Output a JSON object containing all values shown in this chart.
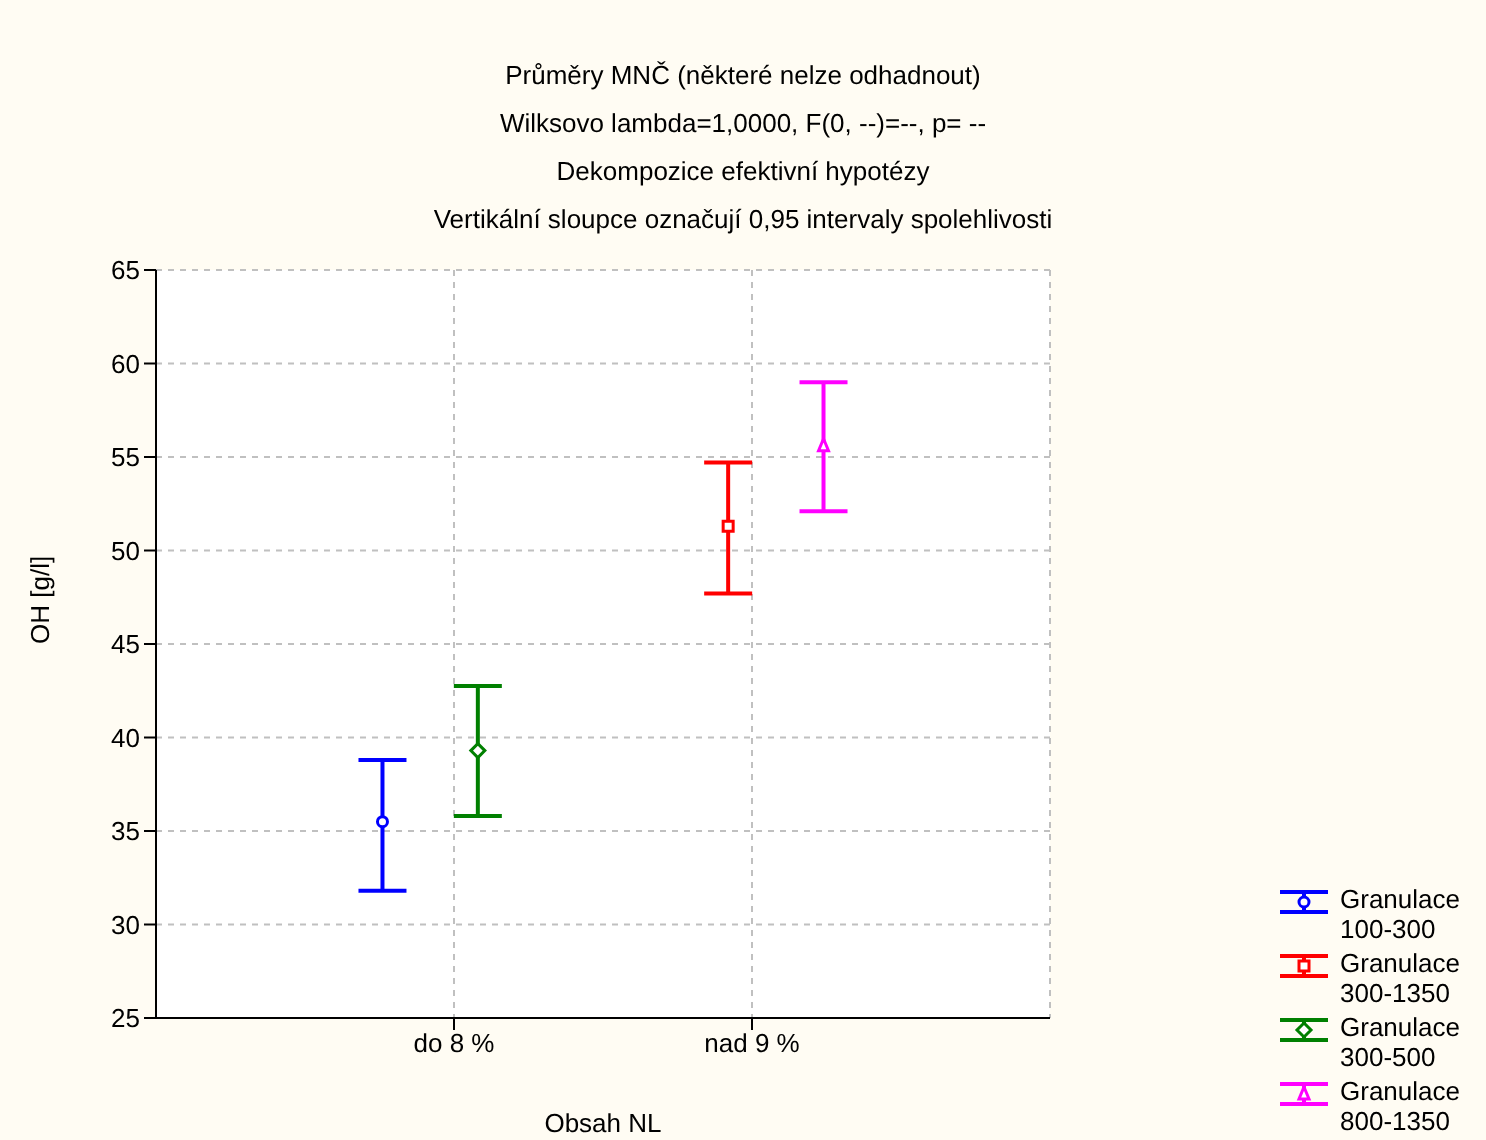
{
  "chart_data": {
    "type": "scatter",
    "title": "Průměry MNČ (některé nelze odhadnout)",
    "subtitle": "Wilksovo lambda=1,0000, F(0, --)=--, p=  --\nDekompozice efektivní hypotézy\nVertikální sloupce označují 0,95 intervaly spolehlivosti",
    "xlabel": "Obsah NL",
    "ylabel": "OH [g/l]",
    "categories": [
      "do 8 %",
      "nad 9 %"
    ],
    "ylim": [
      25,
      65
    ],
    "yticks": [
      25,
      30,
      35,
      40,
      45,
      50,
      55,
      60,
      65
    ],
    "grid": true,
    "legend": "bottom right",
    "series": [
      {
        "name": "Granulace 100-300",
        "color": "#0000ff",
        "marker": "circle",
        "values": [
          35.5,
          null
        ],
        "errors": [
          [
            31.8,
            38.8
          ],
          null
        ]
      },
      {
        "name": "Granulace 300-1350",
        "color": "#ff0000",
        "marker": "square",
        "values": [
          null,
          51.3
        ],
        "errors": [
          null,
          [
            47.7,
            54.7
          ]
        ]
      },
      {
        "name": "Granulace 300-500",
        "color": "#008000",
        "marker": "diamond",
        "values": [
          39.3,
          null
        ],
        "errors": [
          [
            35.8,
            42.75
          ],
          null
        ]
      },
      {
        "name": "Granulace 800-1350",
        "color": "#ff00ff",
        "marker": "triangle",
        "values": [
          null,
          55.6
        ],
        "errors": [
          null,
          [
            52.1,
            59
          ]
        ]
      }
    ]
  }
}
